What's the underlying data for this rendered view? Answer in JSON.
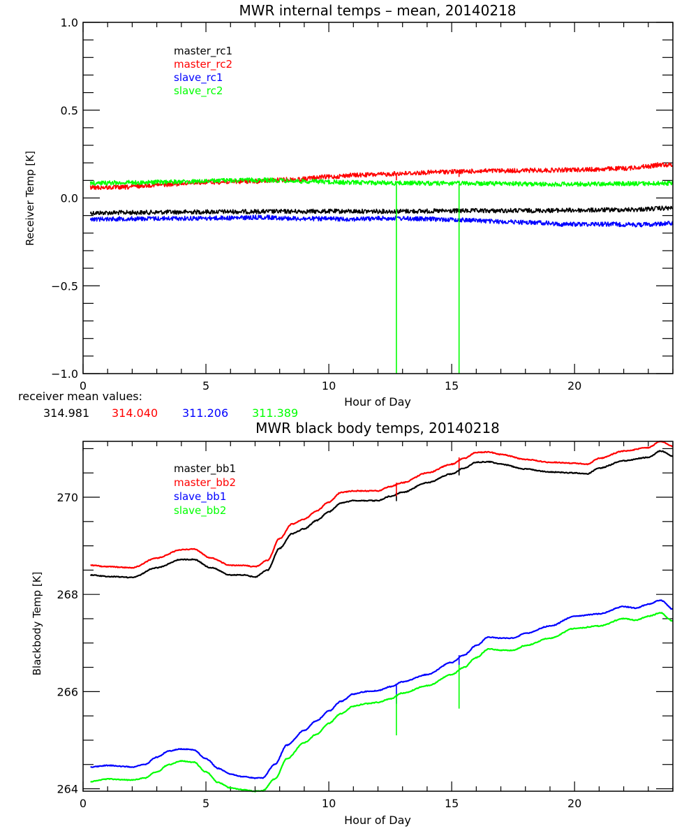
{
  "chart_data": [
    {
      "type": "line",
      "title": "MWR internal temps – mean, 20140218",
      "xlabel": "Hour of Day",
      "ylabel": "Receiver Temp [K]",
      "xlim": [
        0,
        24
      ],
      "ylim": [
        -1.0,
        1.0
      ],
      "xticks": [
        0,
        5,
        10,
        15,
        20
      ],
      "xtick_labels": [
        "0",
        "5",
        "10",
        "15",
        "20"
      ],
      "xminor_step": 1,
      "yticks": [
        -1.0,
        -0.5,
        0.0,
        0.5,
        1.0
      ],
      "ytick_labels": [
        "−1.0",
        "−0.5",
        "0.0",
        "0.5",
        "1.0"
      ],
      "yminor_step": 0.1,
      "grid": false,
      "legend_position": "top-left",
      "noisy": true,
      "series": [
        {
          "name": "master_rc1",
          "color": "#000000",
          "x": [
            0.3,
            2,
            4,
            6,
            8,
            10,
            12,
            14,
            16,
            18,
            20,
            22,
            24
          ],
          "y": [
            -0.085,
            -0.083,
            -0.08,
            -0.078,
            -0.077,
            -0.076,
            -0.076,
            -0.075,
            -0.073,
            -0.072,
            -0.07,
            -0.067,
            -0.058
          ]
        },
        {
          "name": "master_rc2",
          "color": "#ff0000",
          "x": [
            0.3,
            1.5,
            3,
            5,
            7,
            8.5,
            10,
            11,
            12,
            13,
            15,
            17,
            19,
            20.5,
            22,
            23,
            23.5,
            24
          ],
          "y": [
            0.06,
            0.06,
            0.075,
            0.09,
            0.095,
            0.105,
            0.12,
            0.13,
            0.133,
            0.14,
            0.15,
            0.155,
            0.158,
            0.162,
            0.168,
            0.18,
            0.19,
            0.188
          ]
        },
        {
          "name": "slave_rc1",
          "color": "#0000ff",
          "x": [
            0.3,
            2,
            4,
            6,
            7.3,
            9,
            11,
            12.5,
            14,
            15.5,
            17,
            18.5,
            19.5,
            21,
            22.5,
            24
          ],
          "y": [
            -0.12,
            -0.118,
            -0.116,
            -0.114,
            -0.11,
            -0.118,
            -0.12,
            -0.115,
            -0.12,
            -0.125,
            -0.135,
            -0.14,
            -0.15,
            -0.148,
            -0.152,
            -0.145
          ]
        },
        {
          "name": "slave_rc2",
          "color": "#00ff00",
          "x": [
            0.3,
            2,
            4,
            6,
            7.3,
            9,
            11,
            13,
            15,
            17,
            19,
            21,
            23,
            24
          ],
          "y": [
            0.085,
            0.088,
            0.092,
            0.1,
            0.102,
            0.095,
            0.088,
            0.085,
            0.083,
            0.082,
            0.078,
            0.08,
            0.082,
            0.085
          ]
        }
      ],
      "spikes": [
        {
          "series": "slave_rc2",
          "x": 12.75,
          "y_from": 0.08,
          "y_to": -1.0
        },
        {
          "series": "slave_rc2",
          "x": 15.3,
          "y_from": 0.08,
          "y_to": -1.0
        },
        {
          "series": "master_rc2",
          "x": 12.75,
          "y_from": 0.14,
          "y_to": 0.1
        },
        {
          "series": "master_rc2",
          "x": 15.3,
          "y_from": 0.155,
          "y_to": 0.12
        }
      ],
      "annotation": {
        "label": "receiver mean values:",
        "values": [
          {
            "text": "314.981",
            "color": "#000000"
          },
          {
            "text": "314.040",
            "color": "#ff0000"
          },
          {
            "text": "311.206",
            "color": "#0000ff"
          },
          {
            "text": "311.389",
            "color": "#00ff00"
          }
        ]
      }
    },
    {
      "type": "line",
      "title": "MWR black body temps, 20140218",
      "xlabel": "Hour of Day",
      "ylabel": "Blackbody Temp [K]",
      "xlim": [
        0,
        24
      ],
      "ylim": [
        263.95,
        271.15
      ],
      "xticks": [
        0,
        5,
        10,
        15,
        20
      ],
      "xtick_labels": [
        "0",
        "5",
        "10",
        "15",
        "20"
      ],
      "xminor_step": 1,
      "yticks": [
        264,
        266,
        268,
        270
      ],
      "ytick_labels": [
        "264",
        "266",
        "268",
        "270"
      ],
      "yminor_step": 0.5,
      "grid": false,
      "legend_position": "top-left",
      "noisy": false,
      "series": [
        {
          "name": "master_bb1",
          "color": "#000000",
          "x": [
            0.3,
            1,
            2,
            3,
            4,
            4.5,
            5.2,
            6,
            6.5,
            7,
            7.5,
            8,
            8.5,
            9,
            9.5,
            10,
            10.5,
            11,
            12,
            12.5,
            13,
            14,
            15,
            15.5,
            16,
            16.5,
            17,
            18,
            19,
            20,
            20.5,
            21,
            22,
            23,
            23.5,
            24
          ],
          "y": [
            268.4,
            268.37,
            268.35,
            268.55,
            268.72,
            268.72,
            268.55,
            268.4,
            268.4,
            268.36,
            268.5,
            268.95,
            269.25,
            269.35,
            269.52,
            269.7,
            269.88,
            269.93,
            269.93,
            270.02,
            270.1,
            270.3,
            270.48,
            270.6,
            270.72,
            270.73,
            270.68,
            270.58,
            270.52,
            270.5,
            270.48,
            270.6,
            270.75,
            270.82,
            270.95,
            270.85
          ]
        },
        {
          "name": "master_bb2",
          "color": "#ff0000",
          "x": [
            0.3,
            1,
            2,
            3,
            4,
            4.5,
            5.2,
            6,
            6.5,
            7,
            7.5,
            8,
            8.5,
            9,
            9.5,
            10,
            10.5,
            11,
            12,
            12.5,
            13,
            14,
            15,
            15.5,
            16,
            16.5,
            17,
            18,
            19,
            20,
            20.5,
            21,
            22,
            23,
            23.5,
            24
          ],
          "y": [
            268.6,
            268.57,
            268.55,
            268.75,
            268.92,
            268.93,
            268.75,
            268.6,
            268.6,
            268.57,
            268.7,
            269.15,
            269.45,
            269.55,
            269.72,
            269.9,
            270.1,
            270.13,
            270.13,
            270.22,
            270.3,
            270.5,
            270.68,
            270.8,
            270.92,
            270.93,
            270.88,
            270.78,
            270.72,
            270.7,
            270.68,
            270.8,
            270.95,
            271.02,
            271.15,
            271.05
          ]
        },
        {
          "name": "slave_bb1",
          "color": "#0000ff",
          "x": [
            0.3,
            1,
            2,
            2.5,
            3,
            3.5,
            4,
            4.5,
            5,
            5.5,
            6,
            6.5,
            7,
            7.3,
            7.8,
            8.3,
            9,
            9.5,
            10,
            10.5,
            11,
            11.5,
            12,
            12.5,
            13,
            14,
            15,
            15.5,
            16,
            16.5,
            17,
            17.5,
            18,
            19,
            20,
            21,
            22,
            22.5,
            23,
            23.5,
            24
          ],
          "y": [
            264.45,
            264.48,
            264.45,
            264.5,
            264.65,
            264.78,
            264.82,
            264.8,
            264.62,
            264.42,
            264.3,
            264.25,
            264.22,
            264.22,
            264.5,
            264.9,
            265.2,
            265.4,
            265.6,
            265.8,
            265.95,
            266.0,
            266.02,
            266.1,
            266.2,
            266.35,
            266.6,
            266.75,
            266.95,
            267.12,
            267.1,
            267.1,
            267.2,
            267.35,
            267.55,
            267.6,
            267.75,
            267.72,
            267.8,
            267.88,
            267.7
          ]
        },
        {
          "name": "slave_bb2",
          "color": "#00ff00",
          "x": [
            0.3,
            1,
            2,
            2.5,
            3,
            3.5,
            4,
            4.5,
            5,
            5.5,
            6,
            6.5,
            7,
            7.3,
            7.8,
            8.3,
            9,
            9.5,
            10,
            10.5,
            11,
            11.5,
            12,
            12.5,
            13,
            14,
            15,
            15.5,
            16,
            16.5,
            17,
            17.5,
            18,
            19,
            20,
            21,
            22,
            22.5,
            23,
            23.5,
            24
          ],
          "y": [
            264.15,
            264.2,
            264.18,
            264.22,
            264.35,
            264.5,
            264.57,
            264.55,
            264.35,
            264.13,
            264.02,
            263.98,
            263.95,
            263.96,
            264.2,
            264.62,
            264.95,
            265.12,
            265.35,
            265.55,
            265.7,
            265.75,
            265.78,
            265.85,
            265.97,
            266.12,
            266.35,
            266.5,
            266.7,
            266.88,
            266.85,
            266.85,
            266.95,
            267.1,
            267.3,
            267.35,
            267.5,
            267.47,
            267.55,
            267.62,
            267.45
          ]
        }
      ],
      "spikes": [
        {
          "series": "master_bb1",
          "x": 12.75,
          "y_from": 270.1,
          "y_to": 269.92
        },
        {
          "series": "master_bb2",
          "x": 12.75,
          "y_from": 270.3,
          "y_to": 270.02
        },
        {
          "series": "master_bb1",
          "x": 15.3,
          "y_from": 270.6,
          "y_to": 270.45
        },
        {
          "series": "master_bb2",
          "x": 15.3,
          "y_from": 270.82,
          "y_to": 270.6
        },
        {
          "series": "slave_bb1",
          "x": 12.75,
          "y_from": 266.15,
          "y_to": 265.75
        },
        {
          "series": "slave_bb2",
          "x": 12.75,
          "y_from": 265.95,
          "y_to": 265.1
        },
        {
          "series": "slave_bb1",
          "x": 15.3,
          "y_from": 266.75,
          "y_to": 266.55
        },
        {
          "series": "slave_bb2",
          "x": 15.3,
          "y_from": 266.55,
          "y_to": 265.65
        }
      ]
    }
  ]
}
